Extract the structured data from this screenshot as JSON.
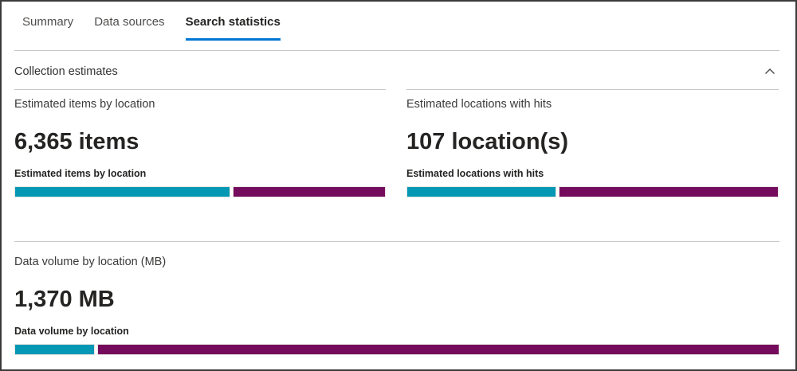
{
  "tabs": {
    "items": [
      {
        "label": "Summary",
        "active": false
      },
      {
        "label": "Data sources",
        "active": false
      },
      {
        "label": "Search statistics",
        "active": true
      }
    ]
  },
  "section": {
    "title": "Collection estimates",
    "collapse_icon": "chevron-up-icon"
  },
  "colors": {
    "accent": "#0078d4",
    "teal": "#0598b4",
    "magenta": "#750b5c",
    "divider": "#c8c6c4"
  },
  "cards": [
    {
      "title": "Estimated items by location",
      "value": "6,365 items",
      "chart_label": "Estimated items by location",
      "bar": {
        "segments": [
          {
            "color": "teal",
            "width_percent": 58.2
          },
          {
            "color": "magenta",
            "width_percent": 41.8
          }
        ]
      }
    },
    {
      "title": "Estimated locations with hits",
      "value": "107 location(s)",
      "chart_label": "Estimated locations with hits",
      "bar": {
        "segments": [
          {
            "color": "teal",
            "width_percent": 40.3
          },
          {
            "color": "magenta",
            "width_percent": 59.7
          }
        ]
      }
    },
    {
      "title": "Data volume by location (MB)",
      "value": "1,370 MB",
      "chart_label": "Data volume by location",
      "bar": {
        "segments": [
          {
            "color": "teal",
            "width_percent": 10.5
          },
          {
            "color": "magenta",
            "width_percent": 89.5
          }
        ]
      }
    }
  ],
  "chart_data": [
    {
      "type": "bar",
      "title": "Estimated items by location",
      "value_label": "6,365 items",
      "series": [
        {
          "name": "teal-segment",
          "percent": 58.2
        },
        {
          "name": "magenta-segment",
          "percent": 41.8
        }
      ]
    },
    {
      "type": "bar",
      "title": "Estimated locations with hits",
      "value_label": "107 location(s)",
      "series": [
        {
          "name": "teal-segment",
          "percent": 40.3
        },
        {
          "name": "magenta-segment",
          "percent": 59.7
        }
      ]
    },
    {
      "type": "bar",
      "title": "Data volume by location",
      "value_label": "1,370 MB",
      "series": [
        {
          "name": "teal-segment",
          "percent": 10.5
        },
        {
          "name": "magenta-segment",
          "percent": 89.5
        }
      ]
    }
  ]
}
